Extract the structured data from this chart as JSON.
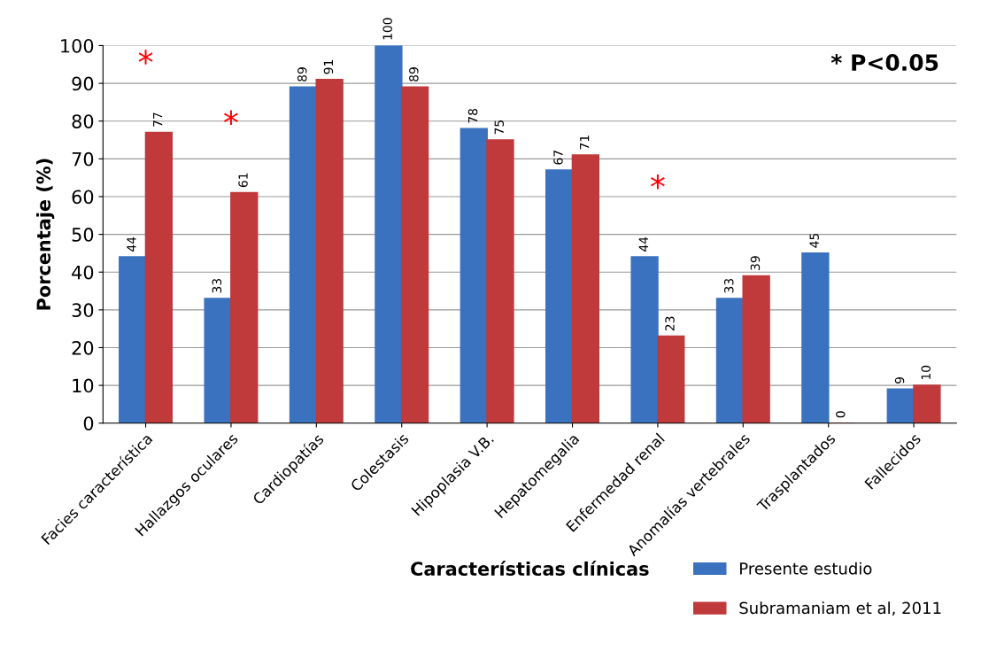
{
  "chart_data": {
    "type": "bar",
    "xlabel": "Características clínicas",
    "ylabel": "Porcentaje (%)",
    "categories": [
      "Facies característica",
      "Hallazgos oculares",
      "Cardiopatías",
      "Colestasis",
      "Hipoplasia V.B.",
      "Hepatomegalia",
      "Enfermedad renal",
      "Anomalías vertebrales",
      "Trasplantados",
      "Fallecidos"
    ],
    "series": [
      {
        "name": "Presente estudio",
        "color": "#3a72c0",
        "values": [
          44,
          33,
          89,
          100,
          78,
          67,
          44,
          33,
          45,
          9
        ]
      },
      {
        "name": "Subramaniam et al, 2011",
        "color": "#c0393b",
        "values": [
          77,
          61,
          91,
          89,
          75,
          71,
          23,
          39,
          0,
          10
        ]
      }
    ],
    "ylim": [
      0,
      100
    ],
    "yticks": [
      0,
      10,
      20,
      30,
      40,
      50,
      60,
      70,
      80,
      90,
      100
    ],
    "grid": "y",
    "legend": "bottom right",
    "data_labels": true,
    "annotations": [
      {
        "text": "*",
        "x": "Facies característica",
        "y": 77
      },
      {
        "text": "*",
        "x": "Hallazgos oculares",
        "y": 61
      },
      {
        "text": "*",
        "x": "Enfermedad renal",
        "y": 44
      },
      "* P<0.05"
    ]
  }
}
